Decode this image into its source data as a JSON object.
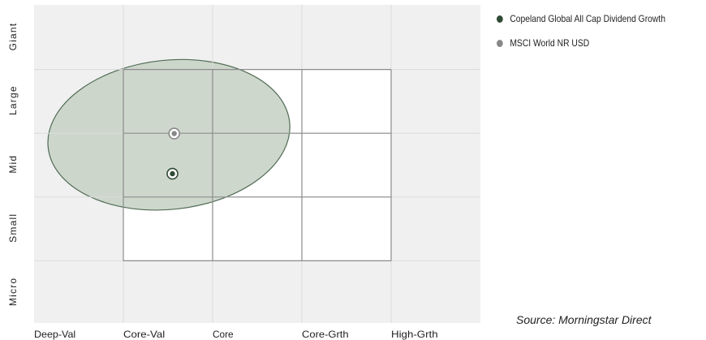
{
  "chart_data": {
    "type": "scatter",
    "x_categories": [
      "Deep-Val",
      "Core-Val",
      "Core",
      "Core-Grth",
      "High-Grth"
    ],
    "y_categories": [
      "Giant",
      "Large",
      "Mid",
      "Small",
      "Micro"
    ],
    "series": [
      {
        "name": "Copeland Global All Cap Dividend Growth",
        "x": 155,
        "y": 234,
        "color": "#2f4a35"
      },
      {
        "name": "MSCI World NR USD",
        "x": 157,
        "y": 297,
        "color": "#888888"
      }
    ],
    "ownership_zone": {
      "center_x": 151,
      "center_y": 295,
      "radius_x": 136,
      "radius_y": 117,
      "rotation": -6,
      "fill": "#c9d3c7",
      "stroke": "#4f6b55"
    },
    "grid": true
  },
  "legend": {
    "items": [
      {
        "label": "Copeland Global All Cap Dividend Growth",
        "color": "#2f4a35"
      },
      {
        "label": "MSCI World NR USD",
        "color": "#888888"
      }
    ]
  },
  "source": "Source: Morningstar Direct"
}
